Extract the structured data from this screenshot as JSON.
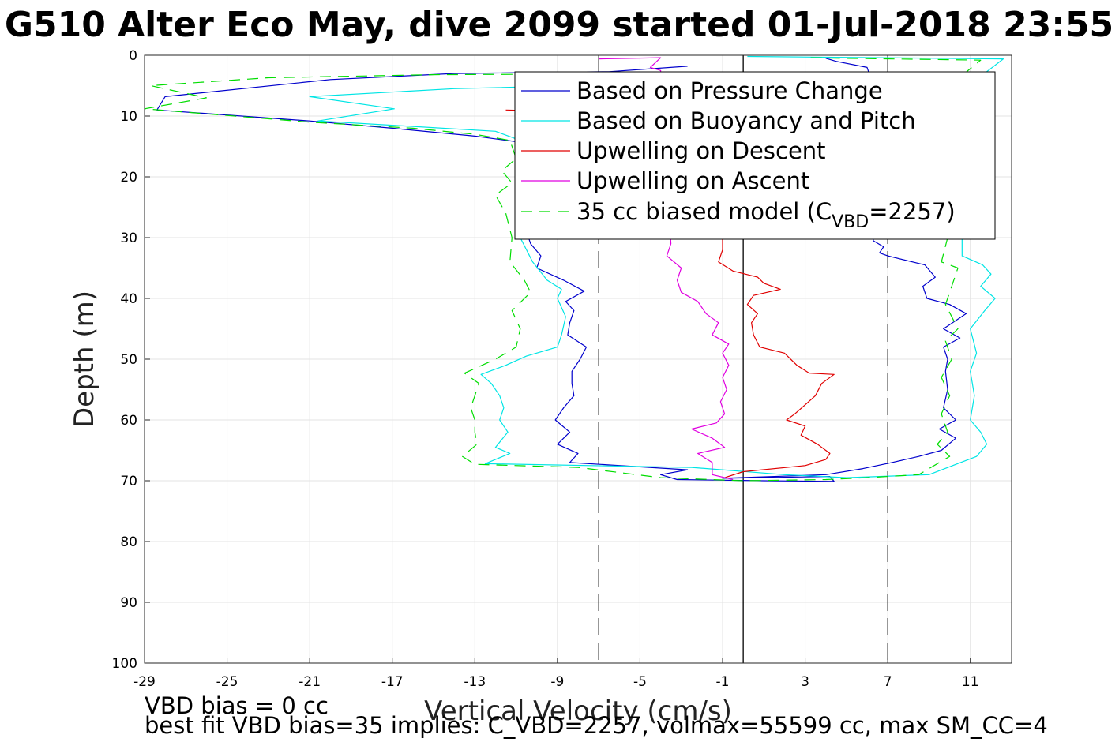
{
  "chart_data": {
    "type": "line",
    "title": "G510 Alter Eco May, dive 2099 started 01-Jul-2018 23:55",
    "xlabel": "Vertical Velocity (cm/s)",
    "ylabel": "Depth (m)",
    "xlim": [
      -29,
      13
    ],
    "ylim": [
      0,
      100
    ],
    "y_reversed": true,
    "grid": true,
    "xticks": [
      -29,
      -25,
      -21,
      -17,
      -13,
      -9,
      -5,
      -1,
      3,
      7,
      11
    ],
    "yticks": [
      0,
      10,
      20,
      30,
      40,
      50,
      60,
      70,
      80,
      90,
      100
    ],
    "reference_lines": [
      {
        "x": 0,
        "style": "solid",
        "color": "#000000"
      },
      {
        "x": -7,
        "style": "dashed",
        "color": "#333333"
      },
      {
        "x": 7,
        "style": "dashed",
        "color": "#333333"
      }
    ],
    "legend": {
      "position": "top-right",
      "entries": [
        {
          "label": "Based on Pressure Change",
          "color": "#0000cc",
          "style": "solid"
        },
        {
          "label": "Based on Buoyancy and Pitch",
          "color": "#00e5e5",
          "style": "solid"
        },
        {
          "label": "Upwelling on Descent",
          "color": "#e00000",
          "style": "solid"
        },
        {
          "label": "Upwelling on Ascent",
          "color": "#e000e0",
          "style": "solid"
        },
        {
          "label_main": "35 cc biased model (C",
          "label_sub": "VBD",
          "label_tail": "=2257)",
          "color": "#00dd00",
          "style": "dashed"
        }
      ]
    },
    "series": [
      {
        "name": "Based on Pressure Change",
        "color": "#0000cc",
        "dash": "",
        "points": [
          [
            -2.7,
            1.8
          ],
          [
            -6.5,
            2.7
          ],
          [
            -14,
            3.0
          ],
          [
            -20,
            4.0
          ],
          [
            -28,
            6.8
          ],
          [
            -28.4,
            9.0
          ],
          [
            -21,
            10.8
          ],
          [
            -17,
            12.0
          ],
          [
            -13,
            13.3
          ],
          [
            -10.8,
            14.3
          ],
          [
            -10.4,
            16.0
          ],
          [
            -10.8,
            18.0
          ],
          [
            -10.2,
            20.0
          ],
          [
            -10.6,
            23.0
          ],
          [
            -10.4,
            26.0
          ],
          [
            -10.6,
            28.0
          ],
          [
            -10.3,
            31.0
          ],
          [
            -9.8,
            33.0
          ],
          [
            -10,
            35.0
          ],
          [
            -8.7,
            37.0
          ],
          [
            -7.7,
            38.8
          ],
          [
            -8.6,
            40.5
          ],
          [
            -8.2,
            42.0
          ],
          [
            -8.4,
            44.0
          ],
          [
            -8.5,
            46.0
          ],
          [
            -7.6,
            48.0
          ],
          [
            -7.9,
            50.0
          ],
          [
            -8.3,
            52.0
          ],
          [
            -8.3,
            54.0
          ],
          [
            -8.2,
            56.0
          ],
          [
            -8.7,
            58.0
          ],
          [
            -9.1,
            60.0
          ],
          [
            -8.4,
            62.0
          ],
          [
            -9.0,
            64.0
          ],
          [
            -8.0,
            65.5
          ],
          [
            -8.4,
            67.0
          ],
          [
            -2.7,
            68.2
          ],
          [
            -4,
            69.0
          ],
          [
            -3.2,
            69.8
          ],
          [
            1,
            70.0
          ],
          [
            4.4,
            70.1
          ],
          [
            4.2,
            69.3
          ],
          [
            -1,
            69.6
          ],
          [
            4.0,
            69.0
          ],
          [
            5.8,
            68.0
          ],
          [
            7.2,
            67.0
          ],
          [
            8.5,
            66.0
          ],
          [
            9.6,
            65.0
          ],
          [
            10.3,
            63.0
          ],
          [
            9.5,
            61.5
          ],
          [
            10.3,
            60.0
          ],
          [
            9.7,
            58.0
          ],
          [
            9.9,
            55.0
          ],
          [
            9.8,
            52.0
          ],
          [
            9.9,
            50.0
          ],
          [
            9.7,
            48.0
          ],
          [
            10.5,
            46.5
          ],
          [
            9.7,
            45.0
          ],
          [
            10.8,
            42.5
          ],
          [
            10.0,
            41.0
          ],
          [
            8.9,
            40.0
          ],
          [
            8.7,
            38.0
          ],
          [
            9.3,
            36.5
          ],
          [
            8.8,
            34.5
          ],
          [
            7.0,
            33.0
          ],
          [
            6.6,
            32.5
          ],
          [
            6.8,
            31.5
          ],
          [
            6.3,
            30.5
          ],
          [
            6.3,
            28.0
          ],
          [
            6.6,
            25.0
          ],
          [
            6.4,
            22.0
          ],
          [
            6.5,
            18.0
          ],
          [
            6.4,
            15.0
          ],
          [
            6.7,
            12.0
          ],
          [
            6.3,
            9.0
          ],
          [
            6.4,
            7.0
          ],
          [
            6.2,
            4.0
          ],
          [
            6.0,
            2.0
          ],
          [
            4.5,
            1.0
          ],
          [
            4.0,
            0.5
          ]
        ]
      },
      {
        "name": "Based on Buoyancy and Pitch",
        "color": "#00e5e5",
        "dash": "",
        "points": [
          [
            -2.0,
            4.5
          ],
          [
            -8,
            5.0
          ],
          [
            -14,
            5.5
          ],
          [
            -21,
            6.8
          ],
          [
            -16.9,
            8.8
          ],
          [
            -20.6,
            10.8
          ],
          [
            -17,
            11.5
          ],
          [
            -12,
            12.5
          ],
          [
            -10.8,
            14.0
          ],
          [
            -10.6,
            18.0
          ],
          [
            -10.9,
            22.0
          ],
          [
            -10.5,
            26.0
          ],
          [
            -10.8,
            30.0
          ],
          [
            -10.2,
            34.0
          ],
          [
            -9.5,
            37.0
          ],
          [
            -8.8,
            38.5
          ],
          [
            -9.0,
            40.0
          ],
          [
            -8.6,
            43.0
          ],
          [
            -8.8,
            46.0
          ],
          [
            -9.0,
            48.0
          ],
          [
            -10.5,
            49.5
          ],
          [
            -11.5,
            51.0
          ],
          [
            -12.7,
            52.5
          ],
          [
            -12.2,
            54.0
          ],
          [
            -11.8,
            56.0
          ],
          [
            -11.6,
            58.0
          ],
          [
            -11.8,
            60.0
          ],
          [
            -11.4,
            62.0
          ],
          [
            -12.0,
            64.5
          ],
          [
            -11.3,
            65.5
          ],
          [
            -12.5,
            67.2
          ],
          [
            -2.5,
            67.8
          ],
          [
            2,
            69.0
          ],
          [
            5,
            69.5
          ],
          [
            9,
            69.0
          ],
          [
            11.3,
            66.0
          ],
          [
            11.8,
            64.0
          ],
          [
            11.5,
            62.0
          ],
          [
            11.0,
            60.0
          ],
          [
            11.2,
            56.0
          ],
          [
            11.0,
            52.0
          ],
          [
            11.3,
            49.0
          ],
          [
            11.0,
            45.0
          ],
          [
            11.7,
            42.0
          ],
          [
            12.2,
            40.0
          ],
          [
            11.5,
            38.0
          ],
          [
            12.0,
            36.0
          ],
          [
            11.6,
            34.5
          ],
          [
            10.6,
            33.0
          ],
          [
            10.6,
            30.0
          ],
          [
            10.8,
            27.0
          ],
          [
            10.5,
            24.0
          ],
          [
            10.8,
            20.0
          ],
          [
            10.6,
            16.0
          ],
          [
            10.9,
            12.0
          ],
          [
            10.8,
            8.0
          ],
          [
            11.3,
            4.0
          ],
          [
            12.6,
            0.6
          ],
          [
            0.2,
            0.2
          ]
        ]
      },
      {
        "name": "Upwelling on Descent",
        "color": "#e00000",
        "dash": "",
        "points": [
          [
            -11.5,
            9.0
          ],
          [
            -9.0,
            9.2
          ],
          [
            -1.0,
            30.0
          ],
          [
            -1.0,
            32.0
          ],
          [
            -1.2,
            34.0
          ],
          [
            -0.5,
            35.5
          ],
          [
            0.7,
            36.5
          ],
          [
            1.0,
            37.5
          ],
          [
            1.8,
            38.5
          ],
          [
            0.5,
            39.5
          ],
          [
            0.2,
            41.0
          ],
          [
            0.7,
            42.5
          ],
          [
            0.4,
            44.0
          ],
          [
            0.5,
            46.0
          ],
          [
            0.8,
            48.0
          ],
          [
            2.0,
            49.0
          ],
          [
            2.6,
            51.0
          ],
          [
            3.2,
            52.3
          ],
          [
            4.4,
            52.5
          ],
          [
            3.8,
            54.0
          ],
          [
            3.5,
            56.0
          ],
          [
            3.0,
            57.5
          ],
          [
            2.5,
            59.0
          ],
          [
            2.1,
            60.0
          ],
          [
            3.0,
            61.0
          ],
          [
            2.8,
            62.5
          ],
          [
            3.6,
            64.0
          ],
          [
            4.2,
            65.5
          ],
          [
            4.0,
            66.5
          ],
          [
            3.0,
            67.5
          ],
          [
            0.0,
            68.5
          ],
          [
            -1.0,
            69.6
          ]
        ]
      },
      {
        "name": "Upwelling on Ascent",
        "color": "#e000e0",
        "dash": "",
        "points": [
          [
            -7.0,
            0.6
          ],
          [
            -4,
            0.4
          ],
          [
            -4.5,
            2.0
          ],
          [
            -4,
            2.5
          ],
          [
            -3.5,
            31.0
          ],
          [
            -3.7,
            33.0
          ],
          [
            -3.0,
            35.0
          ],
          [
            -3.2,
            37.0
          ],
          [
            -3.0,
            39.0
          ],
          [
            -2.2,
            40.5
          ],
          [
            -1.8,
            42.5
          ],
          [
            -1.2,
            44.0
          ],
          [
            -1.5,
            46.0
          ],
          [
            -0.7,
            47.5
          ],
          [
            -1.0,
            49.0
          ],
          [
            -0.7,
            51.0
          ],
          [
            -1.0,
            53.0
          ],
          [
            -0.8,
            55.0
          ],
          [
            -1.1,
            57.0
          ],
          [
            -0.9,
            59.0
          ],
          [
            -1.3,
            60.5
          ],
          [
            -2.5,
            61.5
          ],
          [
            -1.5,
            63.0
          ],
          [
            -0.9,
            64.5
          ],
          [
            -2.2,
            65.5
          ],
          [
            -1.5,
            67.0
          ],
          [
            -1.5,
            69.0
          ],
          [
            -0.5,
            69.8
          ]
        ]
      },
      {
        "name": "35 cc biased model (C_VBD=2257)",
        "color": "#00dd00",
        "dash": "14,9",
        "points": [
          [
            -1.5,
            3.0
          ],
          [
            -15,
            3.2
          ],
          [
            -23,
            3.7
          ],
          [
            -28.7,
            5.0
          ],
          [
            -26,
            7.0
          ],
          [
            -29,
            8.8
          ],
          [
            -21,
            11.0
          ],
          [
            -16,
            12.0
          ],
          [
            -13,
            13.0
          ],
          [
            -11.3,
            14.0
          ],
          [
            -11.0,
            17.0
          ],
          [
            -11.7,
            19.0
          ],
          [
            -11.2,
            21.0
          ],
          [
            -12.0,
            23.0
          ],
          [
            -11.5,
            26.0
          ],
          [
            -11.2,
            30.0
          ],
          [
            -11.3,
            34.0
          ],
          [
            -10.6,
            37.0
          ],
          [
            -10.3,
            39.0
          ],
          [
            -11.2,
            42.0
          ],
          [
            -10.8,
            45.0
          ],
          [
            -11.0,
            48.0
          ],
          [
            -12.0,
            50.0
          ],
          [
            -13.5,
            52.3
          ],
          [
            -12.8,
            54.0
          ],
          [
            -13.0,
            56.0
          ],
          [
            -13.2,
            58.0
          ],
          [
            -13.0,
            60.0
          ],
          [
            -13.0,
            62.0
          ],
          [
            -12.9,
            64.0
          ],
          [
            -13.6,
            66.0
          ],
          [
            -13.0,
            67.3
          ],
          [
            -8.0,
            67.8
          ],
          [
            -4.0,
            69.5
          ],
          [
            0.0,
            70.0
          ],
          [
            4.0,
            69.8
          ],
          [
            6.0,
            69.5
          ],
          [
            8.5,
            69.0
          ],
          [
            10.0,
            66.0
          ],
          [
            9.4,
            64.0
          ],
          [
            9.9,
            62.0
          ],
          [
            9.6,
            59.0
          ],
          [
            10.0,
            56.0
          ],
          [
            9.6,
            53.0
          ],
          [
            10.1,
            50.0
          ],
          [
            9.8,
            47.0
          ],
          [
            10.4,
            45.0
          ],
          [
            9.8,
            41.0
          ],
          [
            10.1,
            38.0
          ],
          [
            10.4,
            35.0
          ],
          [
            9.6,
            34.0
          ],
          [
            9.9,
            30.0
          ],
          [
            9.7,
            25.0
          ],
          [
            10.0,
            20.0
          ],
          [
            9.8,
            15.0
          ],
          [
            10.2,
            10.0
          ],
          [
            10.0,
            5.0
          ],
          [
            11.5,
            0.8
          ],
          [
            3.0,
            0.4
          ]
        ]
      }
    ],
    "annotations": [
      "VBD bias = 0 cc",
      "best fit VBD bias=35 implies: C_VBD=2257, volmax=55599 cc, max SM_CC=4"
    ]
  }
}
